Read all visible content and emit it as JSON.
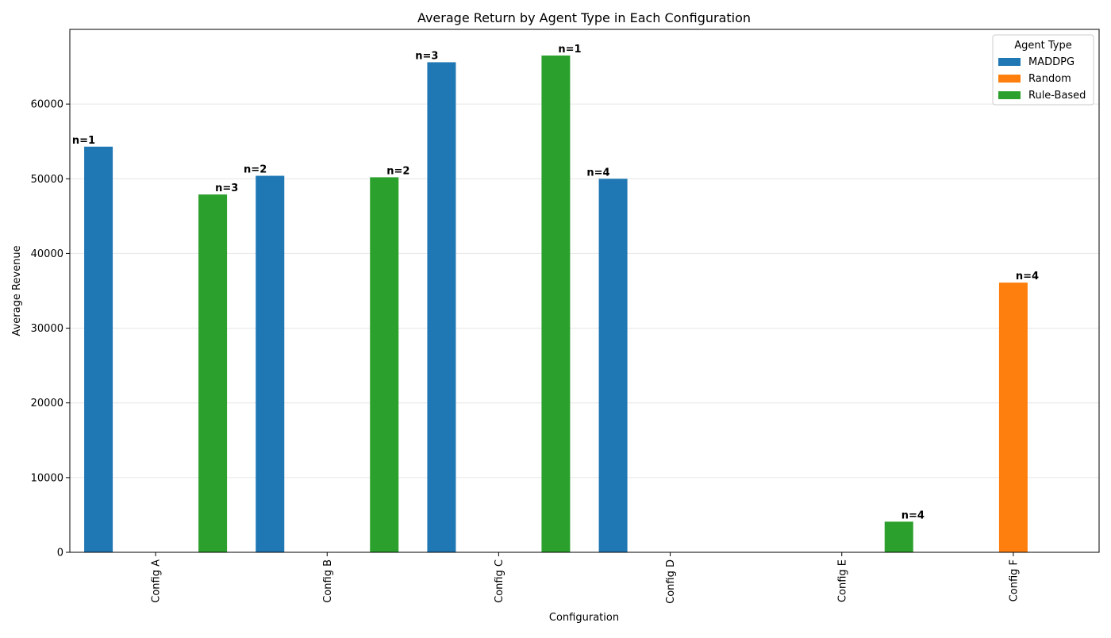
{
  "chart_data": {
    "type": "bar",
    "title": "Average Return by Agent Type in Each Configuration",
    "xlabel": "Configuration",
    "ylabel": "Average Revenue",
    "categories": [
      "Config A",
      "Config B",
      "Config C",
      "Config D",
      "Config E",
      "Config F"
    ],
    "ylim": [
      0,
      70000
    ],
    "yticks": [
      0,
      10000,
      20000,
      30000,
      40000,
      50000,
      60000
    ],
    "grid": "horizontal",
    "legend_title": "Agent Type",
    "legend_position": "top-right",
    "series": [
      {
        "name": "MADDPG",
        "color": "#1f77b4",
        "values": [
          54300,
          50400,
          65600,
          50000,
          null,
          null
        ],
        "labels": [
          "n=1",
          "n=2",
          "n=3",
          "n=4",
          null,
          null
        ]
      },
      {
        "name": "Random",
        "color": "#ff7f0e",
        "values": [
          null,
          null,
          null,
          null,
          null,
          36100
        ],
        "labels": [
          null,
          null,
          null,
          null,
          null,
          "n=4"
        ]
      },
      {
        "name": "Rule-Based",
        "color": "#2ca02c",
        "values": [
          47900,
          50200,
          66500,
          null,
          4100,
          null
        ],
        "labels": [
          "n=3",
          "n=2",
          "n=1",
          null,
          "n=4",
          null
        ]
      }
    ]
  }
}
